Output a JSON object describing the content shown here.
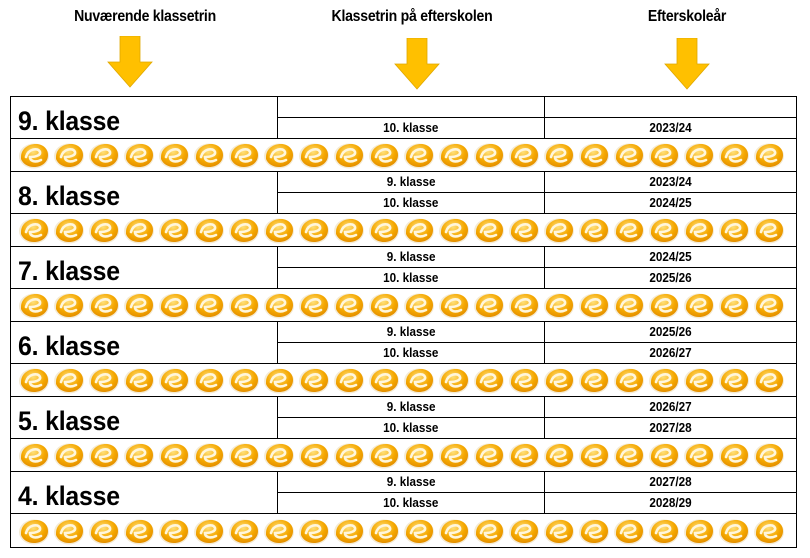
{
  "headers": {
    "current_grade": "Nuværende klassetrin",
    "efterskole_grade": "Klassetrin på efterskolen",
    "efterskole_year": "Efterskoleår"
  },
  "arrow_color": "#FFC000",
  "icon": {
    "name": "efterskole-e-logo-icon",
    "color": "#F5A800",
    "count_per_strip": 22
  },
  "rows": [
    {
      "current": "9. klasse",
      "entries": [
        {
          "grade": "",
          "year": ""
        },
        {
          "grade": "10. klasse",
          "year": "2023/24"
        }
      ]
    },
    {
      "current": "8. klasse",
      "entries": [
        {
          "grade": "9. klasse",
          "year": "2023/24"
        },
        {
          "grade": "10. klasse",
          "year": "2024/25"
        }
      ]
    },
    {
      "current": "7. klasse",
      "entries": [
        {
          "grade": "9. klasse",
          "year": "2024/25"
        },
        {
          "grade": "10. klasse",
          "year": "2025/26"
        }
      ]
    },
    {
      "current": "6. klasse",
      "entries": [
        {
          "grade": "9. klasse",
          "year": "2025/26"
        },
        {
          "grade": "10. klasse",
          "year": "2026/27"
        }
      ]
    },
    {
      "current": "5. klasse",
      "entries": [
        {
          "grade": "9. klasse",
          "year": "2026/27"
        },
        {
          "grade": "10. klasse",
          "year": "2027/28"
        }
      ]
    },
    {
      "current": "4. klasse",
      "entries": [
        {
          "grade": "9. klasse",
          "year": "2027/28"
        },
        {
          "grade": "10. klasse",
          "year": "2028/29"
        }
      ]
    }
  ]
}
